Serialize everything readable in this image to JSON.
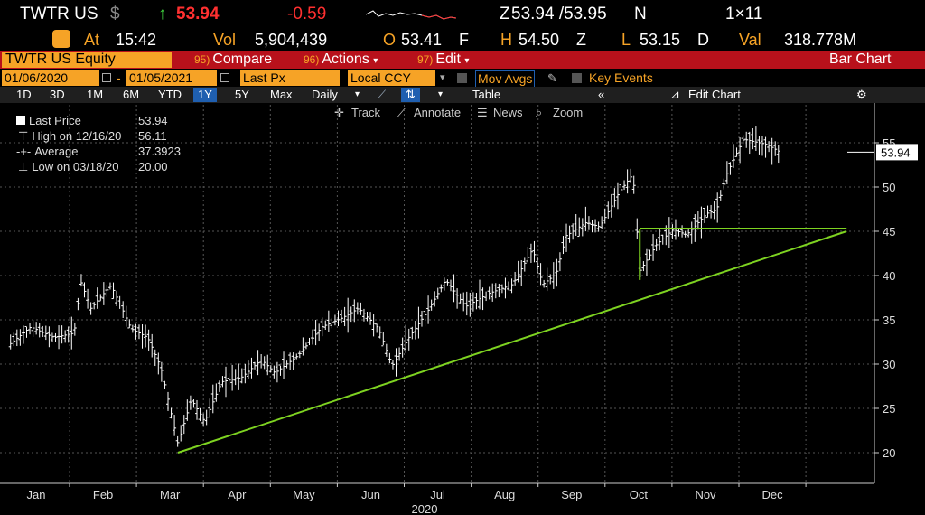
{
  "ticker_bar": {
    "ticker": "TWTR US",
    "currency_symbol": "$",
    "arrow": "↑",
    "last": "53.94",
    "change": "-0.59",
    "bid_prefix": "Z",
    "bid_ask": "53.94 /53.95",
    "ask_suffix": "N",
    "size": "1×11"
  },
  "stats_bar": {
    "at_label": "At",
    "time": "15:42",
    "vol_label": "Vol",
    "vol": "5,904,439",
    "open_label": "O",
    "open": "53.41",
    "open_ex": "F",
    "high_label": "H",
    "high": "54.50",
    "high_ex": "Z",
    "low_label": "L",
    "low": "53.15",
    "low_ex": "D",
    "val_label": "Val",
    "val": "318.778M"
  },
  "menu": {
    "security": "TWTR US Equity",
    "compare_num": "95)",
    "compare": "Compare",
    "actions_num": "96)",
    "actions": "Actions",
    "edit_num": "97)",
    "edit": "Edit",
    "title": "Bar Chart"
  },
  "controls": {
    "start_date": "01/06/2020",
    "end_date": "01/05/2021",
    "field": "Last Px",
    "currency": "Local CCY",
    "mov_avgs": "Mov Avgs",
    "key_events": "Key Events"
  },
  "periods": [
    "1D",
    "3D",
    "1M",
    "6M",
    "YTD",
    "1Y",
    "5Y",
    "Max"
  ],
  "selected_period": "1Y",
  "frequency": "Daily",
  "table_label": "Table",
  "edit_chart_label": "Edit Chart",
  "tools": {
    "track": "Track",
    "annotate": "Annotate",
    "news": "News",
    "zoom": "Zoom"
  },
  "legend": {
    "last_label": "Last Price",
    "last_value": "53.94",
    "high_label": "High on 12/16/20",
    "high_value": "56.11",
    "avg_label": "Average",
    "avg_value": "37.3923",
    "low_label": "Low on 03/18/20",
    "low_value": "20.00"
  },
  "colors": {
    "accent": "#f6a326",
    "up": "#3ed13e",
    "down": "#ff3030",
    "menu_bg": "#b8111b",
    "trend": "#7ed321"
  },
  "chart_data": {
    "type": "bar",
    "title": "",
    "xlabel": "2020",
    "ylabel": "",
    "ylim": [
      17,
      60
    ],
    "y_ticks": [
      20,
      25,
      30,
      35,
      40,
      45,
      50,
      55
    ],
    "x_ticks": [
      "Jan",
      "Feb",
      "Mar",
      "Apr",
      "May",
      "Jun",
      "Jul",
      "Aug",
      "Sep",
      "Oct",
      "Nov",
      "Dec"
    ],
    "last_price_tag": "53.94",
    "price_points": [
      {
        "m": 0.0,
        "v": 32.0
      },
      {
        "m": 0.35,
        "v": 34.2
      },
      {
        "m": 0.7,
        "v": 33.0
      },
      {
        "m": 1.0,
        "v": 33.5
      },
      {
        "m": 1.1,
        "v": 39.3
      },
      {
        "m": 1.25,
        "v": 36.3
      },
      {
        "m": 1.55,
        "v": 38.9
      },
      {
        "m": 1.7,
        "v": 36.5
      },
      {
        "m": 1.85,
        "v": 34.0
      },
      {
        "m": 2.1,
        "v": 33.0
      },
      {
        "m": 2.3,
        "v": 29.5
      },
      {
        "m": 2.55,
        "v": 21.0
      },
      {
        "m": 2.75,
        "v": 26.0
      },
      {
        "m": 2.95,
        "v": 23.5
      },
      {
        "m": 3.2,
        "v": 28.0
      },
      {
        "m": 3.5,
        "v": 28.5
      },
      {
        "m": 3.8,
        "v": 30.5
      },
      {
        "m": 4.0,
        "v": 29.0
      },
      {
        "m": 4.35,
        "v": 31.0
      },
      {
        "m": 4.7,
        "v": 34.2
      },
      {
        "m": 5.0,
        "v": 35.2
      },
      {
        "m": 5.25,
        "v": 36.3
      },
      {
        "m": 5.55,
        "v": 34.0
      },
      {
        "m": 5.75,
        "v": 29.8
      },
      {
        "m": 6.0,
        "v": 33.0
      },
      {
        "m": 6.3,
        "v": 36.2
      },
      {
        "m": 6.55,
        "v": 39.5
      },
      {
        "m": 6.85,
        "v": 36.5
      },
      {
        "m": 7.2,
        "v": 38.0
      },
      {
        "m": 7.55,
        "v": 39.0
      },
      {
        "m": 7.85,
        "v": 43.0
      },
      {
        "m": 8.0,
        "v": 39.0
      },
      {
        "m": 8.2,
        "v": 40.2
      },
      {
        "m": 8.35,
        "v": 44.5
      },
      {
        "m": 8.65,
        "v": 46.0
      },
      {
        "m": 8.85,
        "v": 45.5
      },
      {
        "m": 9.15,
        "v": 49.5
      },
      {
        "m": 9.35,
        "v": 51.5
      },
      {
        "m": 9.45,
        "v": 40.5
      },
      {
        "m": 9.7,
        "v": 43.5
      },
      {
        "m": 9.95,
        "v": 45.2
      },
      {
        "m": 10.15,
        "v": 44.6
      },
      {
        "m": 10.45,
        "v": 47.0
      },
      {
        "m": 10.6,
        "v": 47.5
      },
      {
        "m": 10.75,
        "v": 51.5
      },
      {
        "m": 11.0,
        "v": 55.4
      },
      {
        "m": 11.35,
        "v": 54.8
      },
      {
        "m": 11.55,
        "v": 53.94
      }
    ],
    "annotations": [
      {
        "type": "trendline",
        "from": {
          "m": 2.55,
          "v": 20.0
        },
        "to": {
          "m": 12.0,
          "v": 45.0
        }
      },
      {
        "type": "horizontal",
        "from": {
          "m": 9.45,
          "v": 45.3
        },
        "to": {
          "m": 12.0,
          "v": 45.3
        }
      }
    ]
  }
}
